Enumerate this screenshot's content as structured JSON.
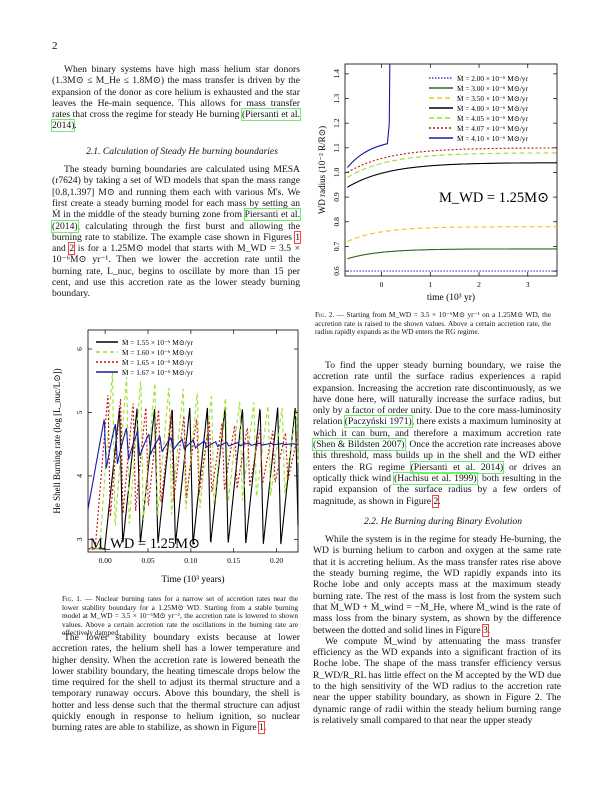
{
  "page_number": "2",
  "col_left_top": [
    "When binary systems have high mass helium star donors (1.3M⊙ ≤ M_He ≤ 1.8M⊙) the mass transfer is driven by the expansion of the donor as core helium is exhausted and the star leaves the He-main sequence. This allows for mass transfer rates that cross the regime for steady He burning ",
    "(Piersanti et al. 2014)",
    "."
  ],
  "section_2_1": "2.1. Calculation of Steady He burning boundaries",
  "para_2_1": {
    "a": "The steady burning boundaries are calculated using MESA (r7624) by taking a set of WD models that span the mass range [0.8,1.397] M⊙ and running them each with various Ṁ's. We first create a steady burning model for each mass by setting an Ṁ in the middle of the steady burning zone from ",
    "cite": "Piersanti et al. (2014)",
    "b": ", calculating through the first burst and allowing the burning rate to stabilize. The example case shown in Figures ",
    "ref1": "1",
    "and": " and ",
    "ref2": "2",
    "c": " is for a 1.25M⊙ model that starts with M_WD = 3.5 × 10⁻⁶M⊙ yr⁻¹. Then we lower the accretion rate until the burning rate, L_nuc, begins to oscillate by more than 15 per cent, and use this accretion rate as the lower steady burning boundary."
  },
  "fig1": {
    "legend": [
      {
        "label": "Ṁ = 1.55 × 10⁻⁶ M⊙/yr",
        "color": "#000000",
        "dash": ""
      },
      {
        "label": "Ṁ = 1.60 × 10⁻⁶ M⊙/yr",
        "color": "#9be22a",
        "dash": "4,3"
      },
      {
        "label": "Ṁ = 1.65 × 10⁻⁶ M⊙/yr",
        "color": "#c81414",
        "dash": "2,2"
      },
      {
        "label": "Ṁ = 1.67 × 10⁻⁶ M⊙/yr",
        "color": "#1a1aa0",
        "dash": ""
      }
    ],
    "ylabel": "He Shell Burning rate (log [L_nuc/L⊙])",
    "xlabel": "Time (10³ years)",
    "annotation": "M_WD = 1.25M⊙",
    "xticks": [
      "0.00",
      "0.05",
      "0.10",
      "0.15",
      "0.20"
    ],
    "yticks": [
      "3",
      "4",
      "5",
      "6"
    ],
    "caption_label": "Fig. 1.",
    "caption": " — Nuclear burning rates for a narrow set of accretion rates near the lower stability boundary for a 1.25M⊙ WD. Starting from a stable burning model at M_WD = 3.5 × 10⁻⁶M⊙ yr⁻¹, the accretion rate is lowered to shown values. Above a certain accretion rate the oscillations in the burning rate are effectively damped."
  },
  "col_left_bottom": {
    "a": "The lower stability boundary exists because at lower accretion rates, the helium shell has a lower temperature and higher density. When the accretion rate is lowered beneath the lower stability boundary, the heating timescale drops below the time required for the shell to adjust its thermal structure and a temporary runaway occurs. Above this boundary, the shell is hotter and less dense such that the thermal structure can adjust quickly enough in response to helium ignition, so nuclear burning rates are able to stabilize, as shown in Figure ",
    "ref": "1",
    "b": "."
  },
  "fig2": {
    "legend": [
      {
        "label": "Ṁ = 2.00 × 10⁻⁶ M⊙/yr",
        "color": "#3838d8",
        "dash": "1.5,1.5"
      },
      {
        "label": "Ṁ = 3.00 × 10⁻⁶ M⊙/yr",
        "color": "#2e6a18",
        "dash": ""
      },
      {
        "label": "Ṁ = 3.50 × 10⁻⁶ M⊙/yr",
        "color": "#f0c020",
        "dash": "5,3"
      },
      {
        "label": "Ṁ = 4.00 × 10⁻⁶ M⊙/yr",
        "color": "#000000",
        "dash": ""
      },
      {
        "label": "Ṁ = 4.05 × 10⁻⁶ M⊙/yr",
        "color": "#9be22a",
        "dash": "5,3"
      },
      {
        "label": "Ṁ = 4.07 × 10⁻⁶ M⊙/yr",
        "color": "#c81414",
        "dash": "2,2"
      },
      {
        "label": "Ṁ = 4.10 × 10⁻⁶ M⊙/yr",
        "color": "#1a1aa0",
        "dash": ""
      }
    ],
    "ylabel": "WD radius (10⁻² R/R⊙)",
    "xlabel": "time (10³ yr)",
    "annotation": "M_WD = 1.25M⊙",
    "xticks": [
      "0",
      "1",
      "2",
      "3"
    ],
    "yticks": [
      "0.6",
      "0.7",
      "0.8",
      "0.9",
      "1.0",
      "1.1",
      "1.2",
      "1.3",
      "1.4"
    ],
    "caption_label": "Fig. 2.",
    "caption": " — Starting from M_WD = 3.5 × 10⁻⁶M⊙ yr⁻¹ on a 1.25M⊙ WD, the accretion rate is raised to the shown values. Above a certain accretion rate, the radius rapidly expands as the WD enters the RG regime."
  },
  "col_right_p1": {
    "a": "To find the upper steady burning boundary, we raise the accretion rate until the surface radius experiences a rapid expansion. Increasing the accretion rate discontinuously, as we have done here, will naturally increase the surface radius, but only by a factor of order unity. Due to the core mass-luminosity relation ",
    "cite1": "(Paczyński 1971)",
    "b": ", there exists a maximum luminosity at which it can burn, and therefore a maximum accretion rate ",
    "cite2": "(Shen & Bildsten 2007)",
    "c": ". Once the accretion rate increases above this threshold, mass builds up in the shell and the WD either enters the RG regime ",
    "cite3": "(Piersanti et al. 2014)",
    "d": " or drives an optically thick wind ",
    "cite4": "(Hachisu et al. 1999)",
    "e": ", both resulting in the rapid expansion of the surface radius by a few orders of magnitude, as shown in Figure ",
    "ref": "2",
    "f": "."
  },
  "section_2_2": "2.2. He Burning during Binary Evolution",
  "col_right_p2": {
    "a": "While the system is in the regime for steady He-burning, the WD is burning helium to carbon and oxygen at the same rate that it is accreting helium. As the mass transfer rates rise above the steady burning regime, the WD rapidly expands into its Roche lobe and only accepts mass at the maximum steady burning rate. The rest of the mass is lost from the system such that Ṁ_WD + Ṁ_wind = −Ṁ_He, where Ṁ_wind is the rate of mass loss from the binary system, as shown by the difference between the dotted and solid lines in Figure ",
    "ref": "3",
    "b": "."
  },
  "col_right_p3": "We compute Ṁ_wind by attenuating the mass transfer efficiency as the WD expands into a significant fraction of its Roche lobe. The shape of the mass transfer efficiency versus R_WD/R_RL has little effect on the Ṁ accepted by the WD due to the high sensitivity of the WD radius to the accretion rate near the upper stability boundary, as shown in Figure 2. The dynamic range of radii within the steady helium burning range is relatively small compared to that near the upper steady"
}
